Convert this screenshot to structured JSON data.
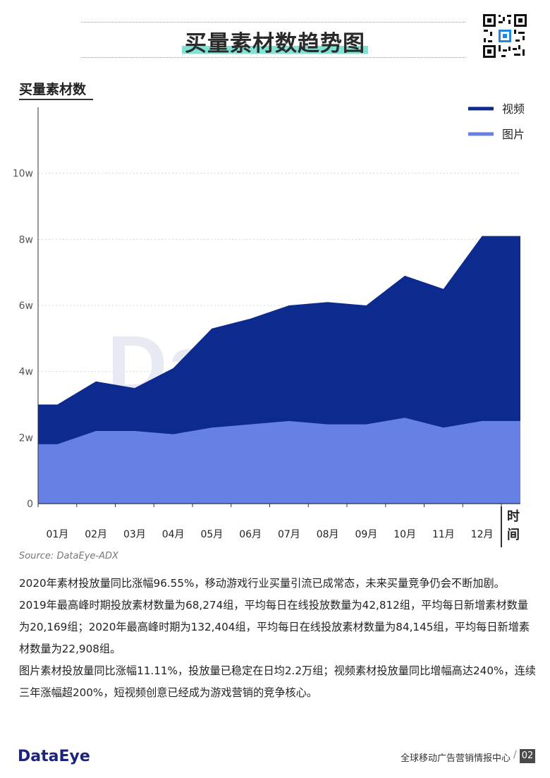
{
  "header": {
    "title": "买量素材数趋势图"
  },
  "chart_data": {
    "type": "area",
    "ylabel": "买量素材数",
    "xlabel": "时间",
    "ylim": [
      0,
      120000
    ],
    "yticks": [
      {
        "value": 0,
        "label": "0"
      },
      {
        "value": 20000,
        "label": "2w"
      },
      {
        "value": 40000,
        "label": "4w"
      },
      {
        "value": 60000,
        "label": "6w"
      },
      {
        "value": 80000,
        "label": "8w"
      },
      {
        "value": 100000,
        "label": "10w"
      }
    ],
    "categories": [
      "01月",
      "02月",
      "03月",
      "04月",
      "05月",
      "06月",
      "07月",
      "08月",
      "09月",
      "10月",
      "11月",
      "12月"
    ],
    "legend_position": "top-right",
    "grid": true,
    "watermark": "DataEye",
    "series": [
      {
        "name": "视频",
        "color": "#0d2b8f",
        "x": [
          "01月",
          "02月",
          "03月",
          "04月",
          "05月",
          "06月",
          "07月",
          "08月",
          "09月",
          "10月",
          "11月",
          "12月"
        ],
        "values": [
          30000,
          37000,
          35000,
          41000,
          53000,
          56000,
          60000,
          61000,
          60000,
          69000,
          65000,
          81000
        ]
      },
      {
        "name": "图片",
        "color": "#6680e3",
        "x": [
          "01月",
          "02月",
          "03月",
          "04月",
          "05月",
          "06月",
          "07月",
          "08月",
          "09月",
          "10月",
          "11月",
          "12月"
        ],
        "values": [
          18000,
          22000,
          22000,
          21000,
          23000,
          24000,
          25000,
          24000,
          24000,
          26000,
          23000,
          25000
        ]
      }
    ]
  },
  "source": "Source: DataEye-ADX",
  "paragraphs": [
    "2020年素材投放量同比涨幅96.55%，移动游戏行业买量引流已成常态，未来买量竞争仍会不断加剧。",
    "2019年最高峰时期投放素材数量为68,274组，平均每日在线投放数量为42,812组，平均每日新增素材数量为20,169组；2020年最高峰时期为132,404组，平均每日在线投放素材数量为84,145组，平均每日新增素材数量为22,908组。",
    "图片素材投放量同比涨幅11.11%，投放量已稳定在日均2.2万组；视频素材投放量同比增幅高达240%，连续三年涨幅超200%，短视频创意已经成为游戏营销的竞争核心。"
  ],
  "footer": {
    "logo": "DataEye",
    "text": "全球移动广告营销情报中心",
    "separator": "/",
    "page": "02"
  }
}
